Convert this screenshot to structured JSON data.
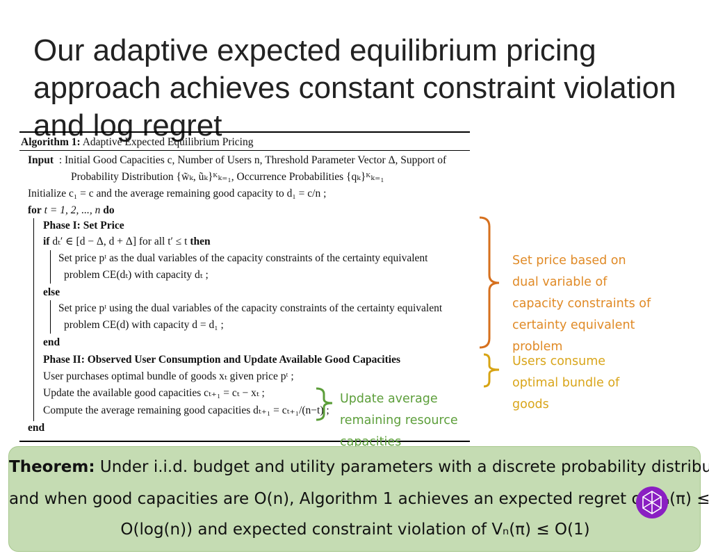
{
  "title": "Our adaptive expected equilibrium pricing approach achieves constant constraint violation and log regret",
  "algorithm": {
    "label": "Algorithm 1:",
    "name": "Adaptive Expected Equilibrium Pricing",
    "input_keyword": "Input",
    "input_line_1": ": Initial Good Capacities c, Number of Users n, Threshold Parameter Vector Δ, Support of",
    "input_line_2": "Probability Distribution {w̃ₖ, ũₖ}ᴷₖ₌₁, Occurrence Probabilities {qₖ}ᴷₖ₌₁",
    "initialize": "Initialize c₁ = c and the average remaining good capacity to d₁ = c/n ;",
    "for_keyword": "for",
    "for_range": "t = 1, 2, ..., n",
    "do_keyword": "do",
    "phase_1": "Phase I: Set Price",
    "if_keyword": "if",
    "if_condition": "dₜ′ ∈ [d − Δ, d + Δ] for all t′ ≤ t",
    "then_keyword": "then",
    "then_line_1": "Set price pᵗ as the dual variables of the capacity constraints of the certainty equivalent",
    "then_line_2": "problem CE(dₜ) with capacity dₜ ;",
    "else_keyword": "else",
    "else_line_1": "Set price pᵗ using the dual variables of the capacity constraints of the certainty equivalent",
    "else_line_2": "problem CE(d) with capacity d = d₁ ;",
    "end_if": "end",
    "phase_2": "Phase II: Observed User Consumption and Update Available Good Capacities",
    "step_purchase": "User purchases optimal bundle of goods xₜ given price pᵗ ;",
    "step_update": "Update the available good capacities cₜ₊₁ = cₜ − xₜ ;",
    "step_compute": "Compute the average remaining good capacities dₜ₊₁ = cₜ₊₁/(n−t) ;",
    "end_for": "end"
  },
  "annotations": {
    "set_price": "Set price based on dual variable of capacity constraints of certainty equivalent problem",
    "consume": "Users consume optimal bundle of goods",
    "update": "Update average remaining resource capacities"
  },
  "theorem": {
    "label": "Theorem:",
    "line_1": "Under i.i.d. budget and utility parameters with a discrete probability distribution",
    "line_2": "and when good capacities are O(n), Algorithm 1 achieves an expected regret of Rₙ(π) ≤",
    "line_3": "O(log(n)) and expected constraint violation of Vₙ(π) ≤ O(1)"
  }
}
